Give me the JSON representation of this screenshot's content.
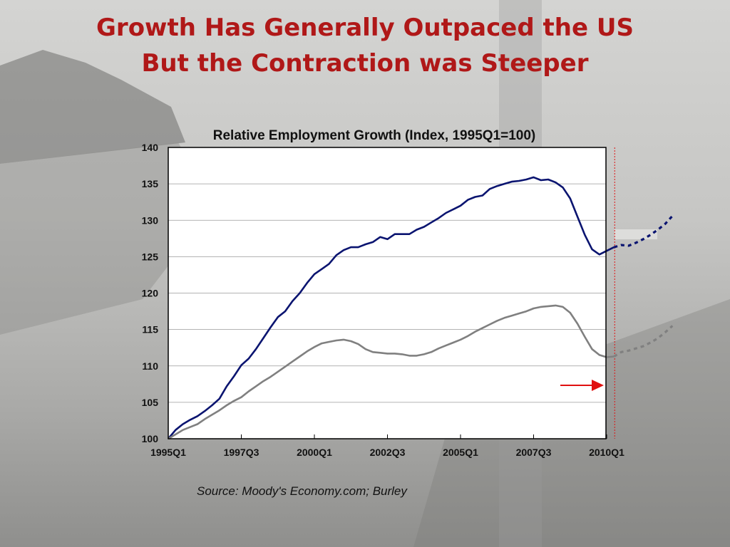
{
  "slide": {
    "title_line1": "Growth Has Generally Outpaced the US",
    "title_line2": "But the Contraction was Steeper",
    "source": "Source: Moody's Economy.com; Burley"
  },
  "colors": {
    "title": "#b01818",
    "series_dark": "#0a1470",
    "series_gray": "#808080",
    "forecast_marker": "#e01010"
  },
  "chart_data": {
    "type": "line",
    "title": "Relative Employment Growth (Index, 1995Q1=100)",
    "xlabel": "",
    "ylabel": "",
    "ylim": [
      100,
      140
    ],
    "yticks": [
      100,
      105,
      110,
      115,
      120,
      125,
      130,
      135,
      140
    ],
    "grid": true,
    "legend": "none",
    "x_tick_labels": [
      "1995Q1",
      "1997Q3",
      "2000Q1",
      "2002Q3",
      "2005Q1",
      "2007Q3",
      "2010Q1"
    ],
    "x": [
      "1995Q1",
      "1995Q2",
      "1995Q3",
      "1995Q4",
      "1996Q1",
      "1996Q2",
      "1996Q3",
      "1996Q4",
      "1997Q1",
      "1997Q2",
      "1997Q3",
      "1997Q4",
      "1998Q1",
      "1998Q2",
      "1998Q3",
      "1998Q4",
      "1999Q1",
      "1999Q2",
      "1999Q3",
      "1999Q4",
      "2000Q1",
      "2000Q2",
      "2000Q3",
      "2000Q4",
      "2001Q1",
      "2001Q2",
      "2001Q3",
      "2001Q4",
      "2002Q1",
      "2002Q2",
      "2002Q3",
      "2002Q4",
      "2003Q1",
      "2003Q2",
      "2003Q3",
      "2003Q4",
      "2004Q1",
      "2004Q2",
      "2004Q3",
      "2004Q4",
      "2005Q1",
      "2005Q2",
      "2005Q3",
      "2005Q4",
      "2006Q1",
      "2006Q2",
      "2006Q3",
      "2006Q4",
      "2007Q1",
      "2007Q2",
      "2007Q3",
      "2007Q4",
      "2008Q1",
      "2008Q2",
      "2008Q3",
      "2008Q4",
      "2009Q1",
      "2009Q2",
      "2009Q3",
      "2009Q4",
      "2010Q1",
      "2010Q2",
      "2010Q3",
      "2010Q4",
      "2011Q1",
      "2011Q2",
      "2011Q3",
      "2011Q4",
      "2012Q1",
      "2012Q2"
    ],
    "forecast_start": "2010Q2",
    "series": [
      {
        "style": "dark",
        "values": [
          100,
          101.2,
          102,
          102.6,
          103.1,
          103.8,
          104.6,
          105.5,
          107.2,
          108.6,
          110.1,
          111.0,
          112.3,
          113.8,
          115.3,
          116.7,
          117.5,
          118.9,
          120.0,
          121.4,
          122.6,
          123.3,
          124.0,
          125.2,
          125.9,
          126.3,
          126.3,
          126.7,
          127.0,
          127.7,
          127.4,
          128.1,
          128.1,
          128.1,
          128.7,
          129.1,
          129.7,
          130.3,
          131.0,
          131.5,
          132.0,
          132.8,
          133.2,
          133.4,
          134.3,
          134.7,
          135.0,
          135.3,
          135.4,
          135.6,
          135.9,
          135.5,
          135.6,
          135.2,
          134.5,
          133.0,
          130.5,
          128.0,
          126.0,
          125.3,
          125.8,
          126.3,
          126.6,
          126.5,
          126.9,
          127.4,
          128.0,
          128.7,
          129.5,
          130.6
        ]
      },
      {
        "style": "gray",
        "values": [
          100,
          100.6,
          101.2,
          101.6,
          102.0,
          102.7,
          103.3,
          103.9,
          104.6,
          105.2,
          105.7,
          106.5,
          107.2,
          107.9,
          108.5,
          109.2,
          109.9,
          110.6,
          111.3,
          112.0,
          112.6,
          113.1,
          113.3,
          113.5,
          113.6,
          113.4,
          113.0,
          112.3,
          111.9,
          111.8,
          111.7,
          111.7,
          111.6,
          111.4,
          111.4,
          111.6,
          111.9,
          112.4,
          112.8,
          113.2,
          113.6,
          114.1,
          114.7,
          115.2,
          115.7,
          116.2,
          116.6,
          116.9,
          117.2,
          117.5,
          117.9,
          118.1,
          118.2,
          118.3,
          118.1,
          117.3,
          115.8,
          114.0,
          112.3,
          111.5,
          111.2,
          111.3,
          111.9,
          112.1,
          112.4,
          112.7,
          113.2,
          113.8,
          114.6,
          115.5
        ]
      }
    ]
  }
}
